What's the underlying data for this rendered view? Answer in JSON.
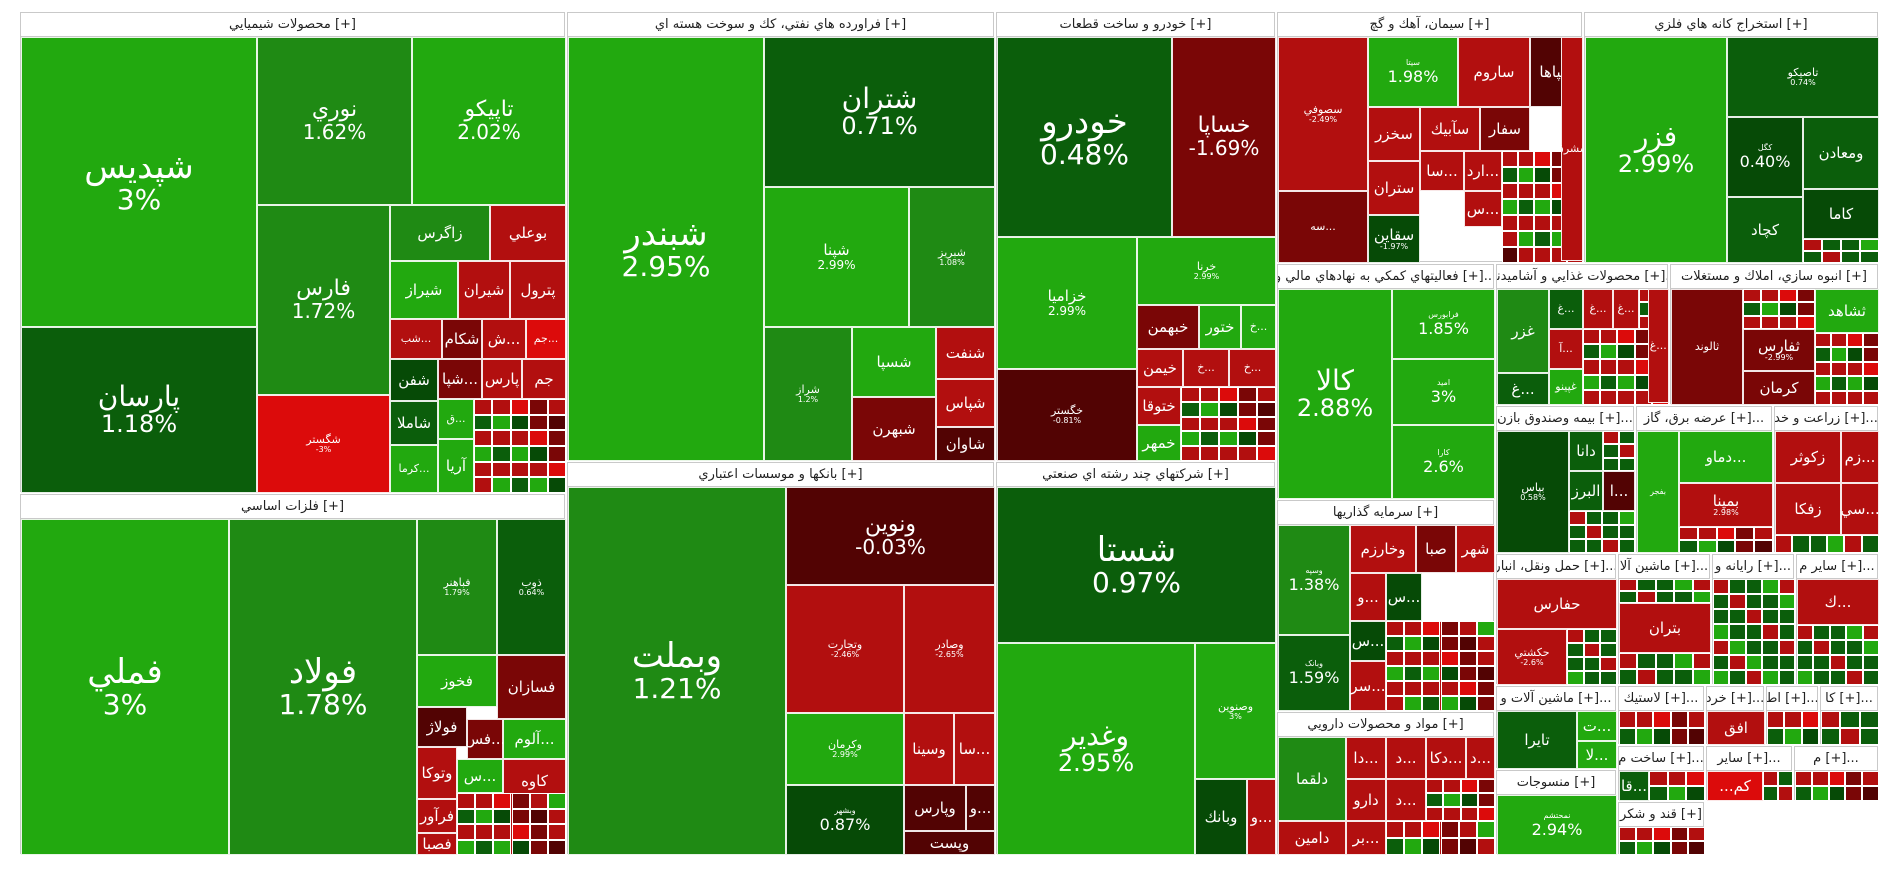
{
  "palette": {
    "pos_bright": "#22a90f",
    "pos_mid": "#1f8a14",
    "pos_dark": "#0b5e0b",
    "pos_darker": "#064a06",
    "neg_bright": "#dc0b0b",
    "neg_mid": "#b20f0f",
    "neg_dark": "#7a0606",
    "neg_darker": "#520303",
    "page_bg": "#ffffff",
    "header_text": "#222222"
  },
  "sectors": [
    {
      "title": "محصولات شيميايي [+]",
      "tiles": [
        {
          "sym": "شپديس",
          "pct": "3%"
        },
        {
          "sym": "پارسان",
          "pct": "1.18%"
        },
        {
          "sym": "نوري",
          "pct": "1.62%"
        },
        {
          "sym": "تاپيكو",
          "pct": "2.02%"
        },
        {
          "sym": "فارس",
          "pct": "1.72%"
        },
        {
          "sym": "زاگرس"
        },
        {
          "sym": "بوعلي"
        },
        {
          "sym": "شيراز"
        },
        {
          "sym": "شيران"
        },
        {
          "sym": "پترول"
        },
        {
          "sym": "شب..."
        },
        {
          "sym": "شكام"
        },
        {
          "sym": "ش..."
        },
        {
          "sym": "جم..."
        },
        {
          "sym": "شفن"
        },
        {
          "sym": "شپا..."
        },
        {
          "sym": "پارس"
        },
        {
          "sym": "جم"
        },
        {
          "sym": "شاملا"
        },
        {
          "sym": "ق..."
        },
        {
          "sym": "كرما..."
        },
        {
          "sym": "آريا"
        },
        {
          "sym": "شگستر",
          "pct": "-3%"
        }
      ]
    },
    {
      "title": "فراورده هاي نفتي، كك و سوخت هسته اي [+]",
      "tiles": [
        {
          "sym": "شبندر",
          "pct": "2.95%"
        },
        {
          "sym": "شتران",
          "pct": "0.71%"
        },
        {
          "sym": "شپنا",
          "pct": "2.99%"
        },
        {
          "sym": "شبريز",
          "pct": "1.08%"
        },
        {
          "sym": "شراز",
          "pct": "1.2%"
        },
        {
          "sym": "شسپا"
        },
        {
          "sym": "شنفت"
        },
        {
          "sym": "شپاس"
        },
        {
          "sym": "شبهرن"
        },
        {
          "sym": "شاوان"
        }
      ]
    },
    {
      "title": "خودرو و ساخت قطعات [+]",
      "tiles": [
        {
          "sym": "خودرو",
          "pct": "0.48%"
        },
        {
          "sym": "خساپا",
          "pct": "-1.69%"
        },
        {
          "sym": "خزاميا",
          "pct": "2.99%"
        },
        {
          "sym": "خرنا",
          "pct": "2.99%"
        },
        {
          "sym": "خگستر",
          "pct": "-0.81%"
        },
        {
          "sym": "خبهمن"
        },
        {
          "sym": "ختور"
        },
        {
          "sym": "خ..."
        },
        {
          "sym": "خيمن"
        },
        {
          "sym": "خ..."
        },
        {
          "sym": "خ..."
        },
        {
          "sym": "ختوقا"
        },
        {
          "sym": "خمهر"
        }
      ]
    },
    {
      "title": "سيمان، آهك و گچ [+]",
      "tiles": [
        {
          "sym": "سصوفي",
          "pct": "-2.49%"
        },
        {
          "sym": "سيتا",
          "pct": "1.98%"
        },
        {
          "sym": "ساروم"
        },
        {
          "sym": "سپاها"
        },
        {
          "sym": "سخزر"
        },
        {
          "sym": "سآبيك"
        },
        {
          "sym": "سفار"
        },
        {
          "sym": "سا..."
        },
        {
          "sym": "ارد..."
        },
        {
          "sym": "ستران"
        },
        {
          "sym": "س..."
        },
        {
          "sym": "سه..."
        },
        {
          "sym": "سقاين",
          "pct": "-1.97%"
        },
        {
          "sym": "سشرق"
        }
      ]
    },
    {
      "title": "استخراج كانه هاي فلزي [+]",
      "tiles": [
        {
          "sym": "فزر",
          "pct": "2.99%"
        },
        {
          "sym": "تاصيكو",
          "pct": "0.74%"
        },
        {
          "sym": "كگل",
          "pct": "0.40%"
        },
        {
          "sym": "ومعادن"
        },
        {
          "sym": "كاما"
        },
        {
          "sym": "كچاد"
        }
      ]
    },
    {
      "title": "فلزات اساسي [+]",
      "tiles": [
        {
          "sym": "فملي",
          "pct": "3%"
        },
        {
          "sym": "فولاد",
          "pct": "1.78%"
        },
        {
          "sym": "فباهنر",
          "pct": "1.79%"
        },
        {
          "sym": "ذوب",
          "pct": "0.64%"
        },
        {
          "sym": "فخوز"
        },
        {
          "sym": "فسازان"
        },
        {
          "sym": "فولاژ"
        },
        {
          "sym": "فس..."
        },
        {
          "sym": "آلوم..."
        },
        {
          "sym": "وتوكا"
        },
        {
          "sym": "س..."
        },
        {
          "sym": "كاوه"
        },
        {
          "sym": "فرآور"
        },
        {
          "sym": "فصبا"
        }
      ]
    },
    {
      "title": "بانكها و موسسات اعتباري [+]",
      "tiles": [
        {
          "sym": "وبملت",
          "pct": "1.21%"
        },
        {
          "sym": "ونوين",
          "pct": "-0.03%"
        },
        {
          "sym": "وتجارت",
          "pct": "-2.46%"
        },
        {
          "sym": "وصادر",
          "pct": "-2.65%"
        },
        {
          "sym": "وكرمان",
          "pct": "2.99%"
        },
        {
          "sym": "وسينا"
        },
        {
          "sym": "سا..."
        },
        {
          "sym": "وبشهر",
          "pct": "0.87%"
        },
        {
          "sym": "وپارس"
        },
        {
          "sym": "و..."
        },
        {
          "sym": "وپست"
        }
      ]
    },
    {
      "title": "شركتهاي چند رشته اي صنعتي [+]",
      "tiles": [
        {
          "sym": "شستا",
          "pct": "0.97%"
        },
        {
          "sym": "وغدير",
          "pct": "2.95%"
        },
        {
          "sym": "وصنوين",
          "pct": "3%"
        },
        {
          "sym": "وبانك"
        },
        {
          "sym": "و..."
        }
      ]
    },
    {
      "title": "فعاليتهاي كمكي به نهادهاي مالي و [+]...",
      "tiles": [
        {
          "sym": "كالا",
          "pct": "2.88%"
        },
        {
          "sym": "فرابورس",
          "pct": "1.85%"
        },
        {
          "sym": "اميد",
          "pct": "3%"
        },
        {
          "sym": "كارا",
          "pct": "2.6%"
        }
      ]
    },
    {
      "title": "سرمايه گذاريها [+]",
      "tiles": [
        {
          "sym": "وسپه",
          "pct": "1.38%"
        },
        {
          "sym": "وخارزم"
        },
        {
          "sym": "صبا"
        },
        {
          "sym": "شهر"
        },
        {
          "sym": "و..."
        },
        {
          "sym": "س..."
        },
        {
          "sym": "وبانک",
          "pct": "1.59%"
        },
        {
          "sym": "س..."
        },
        {
          "sym": "سر..."
        }
      ]
    },
    {
      "title": "مواد و محصولات دارويي [+]",
      "tiles": [
        {
          "sym": "دلقما"
        },
        {
          "sym": "دا..."
        },
        {
          "sym": "د..."
        },
        {
          "sym": "دكا..."
        },
        {
          "sym": "د..."
        },
        {
          "sym": "دارو"
        },
        {
          "sym": "د..."
        },
        {
          "sym": "دامين"
        },
        {
          "sym": "بر..."
        }
      ]
    },
    {
      "title": "محصولات غذايي و آشاميدني [+]...",
      "tiles": [
        {
          "sym": "غزر"
        },
        {
          "sym": "غ..."
        },
        {
          "sym": "غ..."
        },
        {
          "sym": "غ..."
        },
        {
          "sym": "آ..."
        },
        {
          "sym": "غ..."
        },
        {
          "sym": "غپينو"
        },
        {
          "sym": "غ..."
        }
      ]
    },
    {
      "title": "انبوه سازي، املاك و مستغلات [+]",
      "tiles": [
        {
          "sym": "ثالوند"
        },
        {
          "sym": "ثشاهد"
        },
        {
          "sym": "ثفارس",
          "pct": "-2.99%"
        },
        {
          "sym": "كرمان"
        }
      ]
    },
    {
      "title": "بيمه وصندوق بازن [+]...",
      "tiles": [
        {
          "sym": "بپاس",
          "pct": "0.58%"
        },
        {
          "sym": "دانا"
        },
        {
          "sym": "البرز"
        },
        {
          "sym": "ا..."
        }
      ]
    },
    {
      "title": "عرضه برق، گاز [+]...",
      "tiles": [
        {
          "sym": "بفجر"
        },
        {
          "sym": "دماو..."
        },
        {
          "sym": "بمپنا",
          "pct": "2.98%"
        }
      ]
    },
    {
      "title": "زراعت و خد [+]...",
      "tiles": [
        {
          "sym": "زكوثر"
        },
        {
          "sym": "زم..."
        },
        {
          "sym": "زفكا"
        },
        {
          "sym": "سي..."
        }
      ]
    },
    {
      "title": "حمل ونقل، انبار [+]...",
      "tiles": [
        {
          "sym": "حفارس"
        },
        {
          "sym": "حكشتي",
          "pct": "-2.6%"
        }
      ]
    },
    {
      "title": "ماشين آلا [+]...",
      "tiles": [
        {
          "sym": "بتران"
        }
      ]
    },
    {
      "title": "رايانه و [+]...",
      "tiles": []
    },
    {
      "title": "ساير م [+]...",
      "tiles": [
        {
          "sym": "ك..."
        }
      ]
    },
    {
      "title": "ماشين آلات و [+]...",
      "tiles": [
        {
          "sym": "تايرا"
        },
        {
          "sym": "ت..."
        },
        {
          "sym": "لا..."
        }
      ]
    },
    {
      "title": "لاستيك [+]...",
      "tiles": []
    },
    {
      "title": "خرد [+]...",
      "tiles": [
        {
          "sym": "افق"
        }
      ]
    },
    {
      "title": "اط [+]...",
      "tiles": []
    },
    {
      "title": "كا [+]...",
      "tiles": []
    },
    {
      "title": "ساخت م [+]...",
      "tiles": [
        {
          "sym": "قا..."
        }
      ]
    },
    {
      "title": "ساير [+]...",
      "tiles": [
        {
          "sym": "...كم"
        }
      ]
    },
    {
      "title": "م [+]...",
      "tiles": []
    },
    {
      "title": "منسوجات [+]",
      "tiles": [
        {
          "sym": "نمحتشم",
          "pct": "2.94%"
        }
      ]
    },
    {
      "title": "قند و شكر [+]",
      "tiles": []
    },
    {
      "title": "[+]",
      "tiles": []
    }
  ]
}
